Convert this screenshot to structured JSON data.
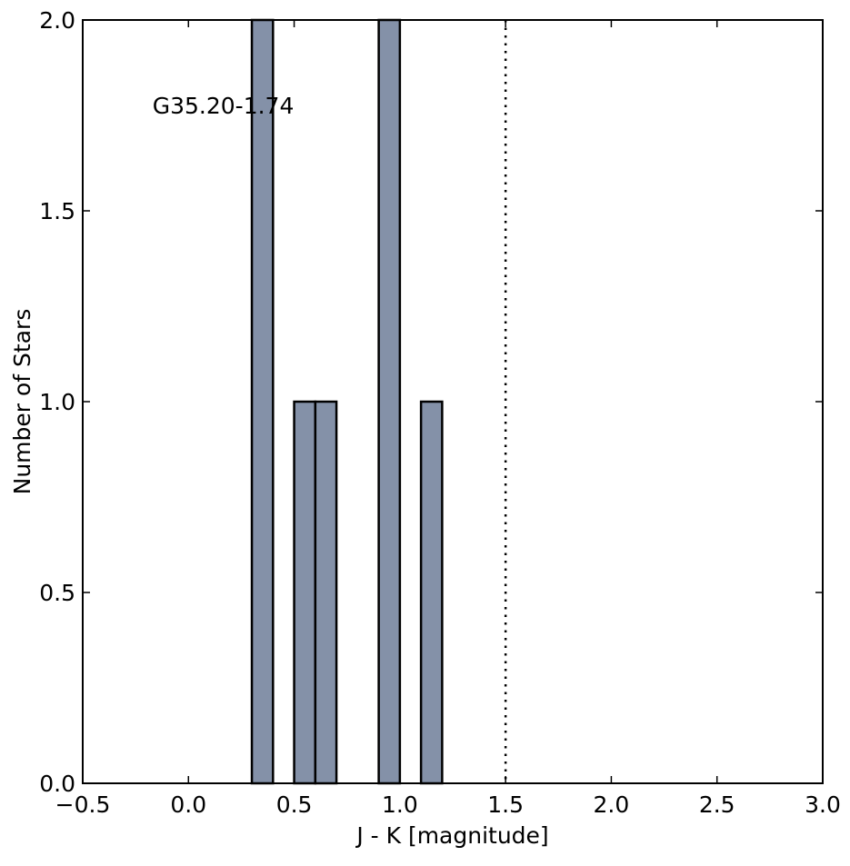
{
  "chart_data": {
    "type": "bar",
    "xlabel": "J - K [magnitude]",
    "ylabel": "Number of Stars",
    "annotation": "G35.20-1.74",
    "xlim": [
      -0.5,
      3.0
    ],
    "ylim": [
      0.0,
      2.0
    ],
    "xticks": [
      "−0.5",
      "0.0",
      "0.5",
      "1.0",
      "1.5",
      "2.0",
      "2.5",
      "3.0"
    ],
    "xtick_values": [
      -0.5,
      0.0,
      0.5,
      1.0,
      1.5,
      2.0,
      2.5,
      3.0
    ],
    "yticks": [
      "0.0",
      "0.5",
      "1.0",
      "1.5",
      "2.0"
    ],
    "ytick_values": [
      0.0,
      0.5,
      1.0,
      1.5,
      2.0
    ],
    "bins": [
      {
        "x0": 0.3,
        "x1": 0.4,
        "count": 2
      },
      {
        "x0": 0.5,
        "x1": 0.6,
        "count": 1
      },
      {
        "x0": 0.6,
        "x1": 0.7,
        "count": 1
      },
      {
        "x0": 0.9,
        "x1": 1.0,
        "count": 2
      },
      {
        "x0": 1.1,
        "x1": 1.2,
        "count": 1
      }
    ],
    "reference_line_x": 1.5,
    "bar_color": "#8491a8",
    "grid": false,
    "legend": "none"
  }
}
